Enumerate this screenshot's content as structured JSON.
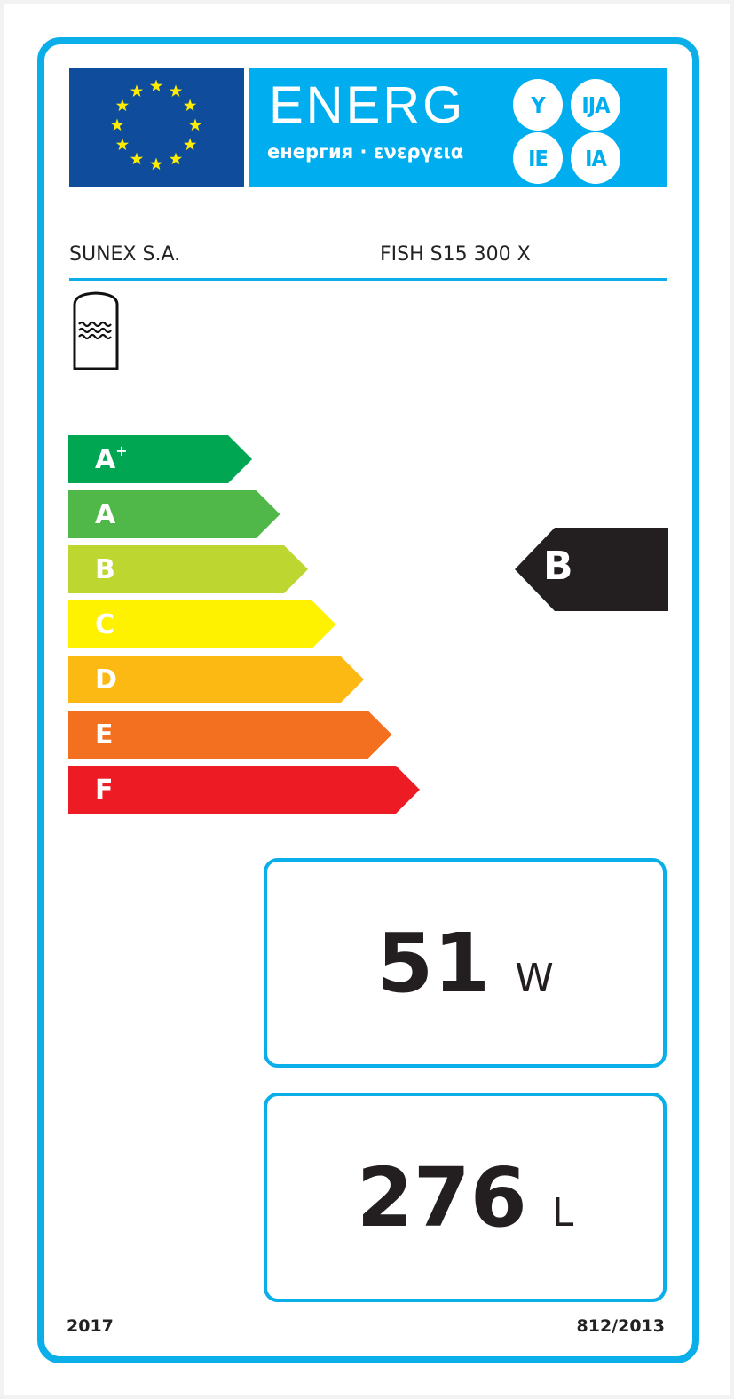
{
  "header": {
    "logo_text": "ENERG",
    "logo_subtitle": "енергия · ενεργεια",
    "language_suffixes": [
      "Y",
      "IJA",
      "IE",
      "IA"
    ],
    "flag_colors": {
      "blue": "#0f4c9c",
      "stars": "#ffed00"
    },
    "banner_color": "#00aeef"
  },
  "product": {
    "supplier": "SUNEX S.A.",
    "model": "FISH S15 300 X",
    "icon": "hot-water-storage-tank-icon"
  },
  "scale": {
    "classes": [
      {
        "label": "A",
        "sup": "+",
        "color": "#00a651"
      },
      {
        "label": "A",
        "sup": "",
        "color": "#50b848"
      },
      {
        "label": "B",
        "sup": "",
        "color": "#bed630"
      },
      {
        "label": "C",
        "sup": "",
        "color": "#fff200"
      },
      {
        "label": "D",
        "sup": "",
        "color": "#fdb913"
      },
      {
        "label": "E",
        "sup": "",
        "color": "#f37021"
      },
      {
        "label": "F",
        "sup": "",
        "color": "#ed1c24"
      }
    ],
    "rating": "B",
    "rating_color": "#231f20"
  },
  "standing_loss": {
    "value": "51",
    "unit": "W"
  },
  "volume": {
    "value": "276",
    "unit": "L"
  },
  "footer": {
    "year": "2017",
    "regulation": "812/2013"
  }
}
